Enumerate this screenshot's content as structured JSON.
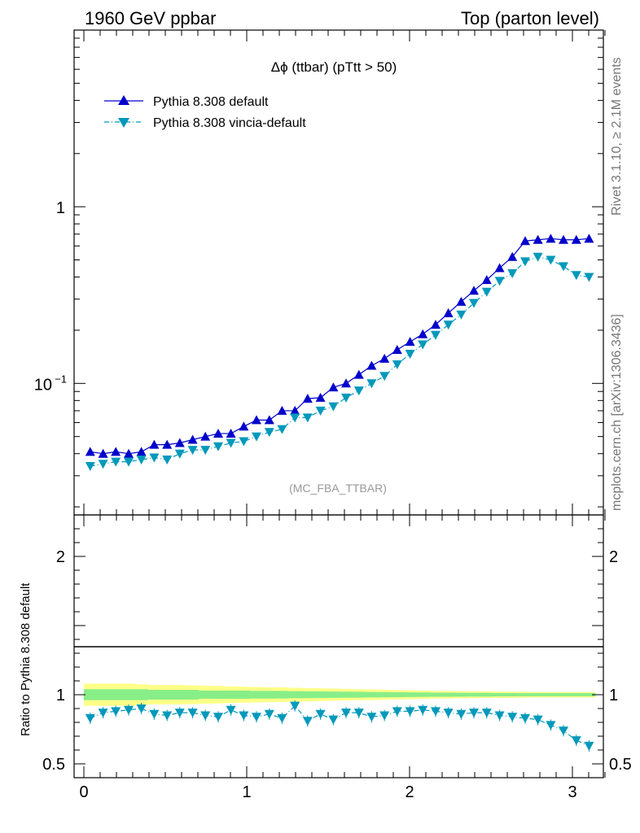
{
  "header": {
    "left": "1960 GeV ppbar",
    "right": "Top (parton level)"
  },
  "side_labels": {
    "rivet": "Rivet 3.1.10, ≥ 2.1M events",
    "mcplots": "mcplots.cern.ch [arXiv:1306.3436]"
  },
  "main_plot": {
    "title": "Δϕ (ttbar) (pTtt > 50)",
    "watermark": "(MC_FBA_TTBAR)",
    "legend": [
      {
        "label": "Pythia 8.308 default",
        "color": "#0000cc",
        "marker": "triangle-up"
      },
      {
        "label": "Pythia 8.308 vincia-default",
        "color": "#0099bb",
        "marker": "triangle-down"
      }
    ],
    "y_ticks": [
      {
        "value": 1,
        "label": "1"
      },
      {
        "value": 0.1,
        "label": "10",
        "sup": "−1"
      }
    ]
  },
  "ratio_plot": {
    "ylabel": "Ratio to Pythia 8.308 default",
    "y_ticks": [
      {
        "value": 2,
        "label": "2"
      },
      {
        "value": 1,
        "label": "1"
      },
      {
        "value": 0.5,
        "label": "0.5"
      }
    ],
    "x_ticks": [
      {
        "value": 0,
        "label": "0"
      },
      {
        "value": 1,
        "label": "1"
      },
      {
        "value": 2,
        "label": "2"
      },
      {
        "value": 3,
        "label": "3"
      }
    ]
  },
  "chart_data": {
    "type": "line",
    "title": "Δϕ (ttbar) (pTtt > 50)",
    "xlabel": "",
    "ylabel": "",
    "xlim": [
      -0.06,
      3.19
    ],
    "ylim": [
      0.018,
      10
    ],
    "y_scale": "log",
    "ratio_ylim": [
      0.4,
      2.3
    ],
    "legend_position": "top-left",
    "x": [
      0.039,
      0.118,
      0.196,
      0.275,
      0.353,
      0.432,
      0.511,
      0.589,
      0.668,
      0.746,
      0.825,
      0.903,
      0.982,
      1.06,
      1.139,
      1.217,
      1.296,
      1.374,
      1.453,
      1.532,
      1.61,
      1.689,
      1.767,
      1.846,
      1.924,
      2.003,
      2.081,
      2.16,
      2.238,
      2.317,
      2.395,
      2.474,
      2.553,
      2.631,
      2.71,
      2.788,
      2.867,
      2.945,
      3.024,
      3.102
    ],
    "series": [
      {
        "name": "Pythia 8.308 default",
        "color": "#0000cc",
        "values": [
          0.041,
          0.04,
          0.041,
          0.04,
          0.041,
          0.045,
          0.045,
          0.046,
          0.048,
          0.05,
          0.052,
          0.052,
          0.057,
          0.062,
          0.062,
          0.07,
          0.07,
          0.082,
          0.083,
          0.095,
          0.1,
          0.112,
          0.126,
          0.138,
          0.155,
          0.172,
          0.19,
          0.215,
          0.25,
          0.29,
          0.335,
          0.385,
          0.45,
          0.52,
          0.64,
          0.65,
          0.66,
          0.65,
          0.65,
          0.66
        ]
      },
      {
        "name": "Pythia 8.308 vincia-default",
        "color": "#0099bb",
        "values": [
          0.034,
          0.035,
          0.036,
          0.036,
          0.037,
          0.038,
          0.037,
          0.04,
          0.042,
          0.042,
          0.044,
          0.046,
          0.047,
          0.05,
          0.053,
          0.055,
          0.064,
          0.064,
          0.07,
          0.074,
          0.083,
          0.091,
          0.1,
          0.11,
          0.128,
          0.147,
          0.166,
          0.188,
          0.215,
          0.245,
          0.285,
          0.33,
          0.38,
          0.42,
          0.49,
          0.52,
          0.5,
          0.46,
          0.41,
          0.4
        ]
      }
    ],
    "ratio_series": [
      {
        "name": "Pythia 8.308 vincia-default",
        "color": "#0099bb",
        "values": [
          0.83,
          0.87,
          0.88,
          0.89,
          0.9,
          0.86,
          0.85,
          0.87,
          0.87,
          0.85,
          0.84,
          0.89,
          0.85,
          0.84,
          0.86,
          0.83,
          0.92,
          0.81,
          0.86,
          0.82,
          0.87,
          0.87,
          0.84,
          0.85,
          0.88,
          0.88,
          0.89,
          0.88,
          0.87,
          0.86,
          0.87,
          0.87,
          0.85,
          0.84,
          0.83,
          0.82,
          0.78,
          0.74,
          0.67,
          0.63
        ]
      }
    ],
    "ratio_band_inner": [
      0.04,
      0.04,
      0.04,
      0.04,
      0.04,
      0.035,
      0.035,
      0.035,
      0.035,
      0.03,
      0.03,
      0.03,
      0.03,
      0.028,
      0.028,
      0.027,
      0.026,
      0.025,
      0.024,
      0.023,
      0.022,
      0.021,
      0.02,
      0.019,
      0.018,
      0.017,
      0.016,
      0.015,
      0.015,
      0.014,
      0.013,
      0.013,
      0.012,
      0.012,
      0.011,
      0.011,
      0.011,
      0.011,
      0.011,
      0.011
    ],
    "ratio_band_outer": [
      0.08,
      0.08,
      0.08,
      0.08,
      0.075,
      0.07,
      0.07,
      0.07,
      0.068,
      0.065,
      0.063,
      0.06,
      0.058,
      0.056,
      0.054,
      0.052,
      0.05,
      0.048,
      0.046,
      0.044,
      0.042,
      0.04,
      0.038,
      0.036,
      0.034,
      0.032,
      0.03,
      0.028,
      0.027,
      0.026,
      0.025,
      0.024,
      0.023,
      0.022,
      0.021,
      0.02,
      0.02,
      0.02,
      0.02,
      0.02
    ]
  }
}
